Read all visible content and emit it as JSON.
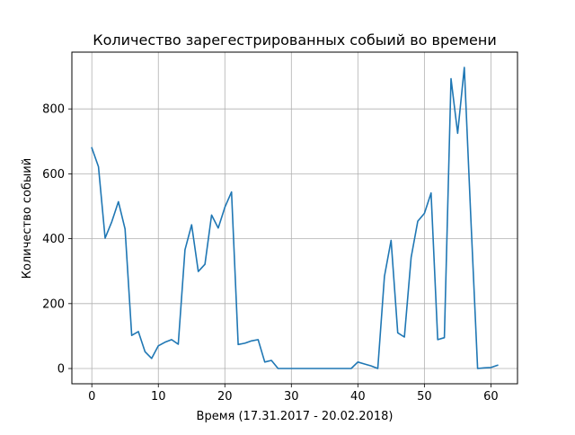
{
  "chart_data": {
    "type": "line",
    "title": "Количество зарегестрированных собыий во времени",
    "xlabel": "Время (17.31.2017 - 20.02.2018)",
    "ylabel": "Количество собыий",
    "xlim": [
      -3,
      64
    ],
    "ylim": [
      -47,
      975
    ],
    "xticks": [
      0,
      10,
      20,
      30,
      40,
      50,
      60
    ],
    "yticks": [
      0,
      200,
      400,
      600,
      800
    ],
    "grid": true,
    "series": [
      {
        "color": "#1f77b4",
        "x": [
          0,
          1,
          2,
          3,
          4,
          5,
          6,
          7,
          8,
          9,
          10,
          11,
          12,
          13,
          14,
          15,
          16,
          17,
          18,
          19,
          20,
          21,
          22,
          23,
          24,
          25,
          26,
          27,
          28,
          29,
          30,
          31,
          32,
          33,
          34,
          35,
          36,
          37,
          38,
          39,
          40,
          41,
          42,
          43,
          44,
          45,
          46,
          47,
          48,
          49,
          50,
          51,
          52,
          53,
          54,
          55,
          56,
          57,
          58,
          59,
          60,
          61
        ],
        "y": [
          680,
          622,
          402,
          452,
          514,
          430,
          102,
          114,
          52,
          31,
          70,
          81,
          89,
          75,
          366,
          443,
          299,
          321,
          473,
          433,
          497,
          544,
          74,
          78,
          85,
          89,
          20,
          25,
          0,
          0,
          0,
          0,
          0,
          0,
          0,
          0,
          0,
          0,
          0,
          0,
          20,
          14,
          8,
          0,
          284,
          395,
          110,
          97,
          342,
          454,
          478,
          541,
          89,
          95,
          893,
          725,
          928,
          455,
          0,
          2,
          3,
          10
        ]
      }
    ]
  }
}
